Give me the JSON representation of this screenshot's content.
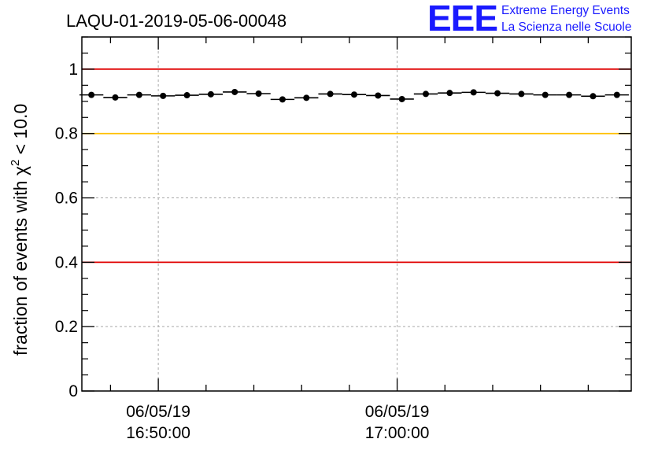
{
  "chart_data": {
    "type": "scatter",
    "title": "LAQU-01-2019-05-06-00048",
    "ylabel": {
      "prefix": "fraction of events with ",
      "chi": "χ",
      "exponent": "2",
      "suffix": " < 10.0"
    },
    "xlabel": "",
    "ylim": [
      0,
      1.1
    ],
    "yticks": [
      0,
      0.2,
      0.4,
      0.6,
      0.8,
      1
    ],
    "ytick_labels": [
      "0",
      "0.2",
      "0.4",
      "0.6",
      "0.8",
      "1"
    ],
    "xlim_minutes": [
      -3.2,
      19.8
    ],
    "xticks": [
      {
        "minute": 0,
        "date": "06/05/19",
        "time": "16:50:00"
      },
      {
        "minute": 10,
        "date": "06/05/19",
        "time": "17:00:00"
      }
    ],
    "x_minor_step_minutes": 2,
    "grid": true,
    "reference_lines": [
      {
        "y": 1.0,
        "color": "#e00000"
      },
      {
        "y": 0.8,
        "color": "#ffc000"
      },
      {
        "y": 0.4,
        "color": "#e00000"
      }
    ],
    "series": [
      {
        "name": "fraction",
        "bin_width_minutes": 1,
        "x_minutes": [
          -2.8,
          -1.8,
          -0.8,
          0.2,
          1.2,
          2.2,
          3.2,
          4.2,
          5.2,
          6.2,
          7.2,
          8.2,
          9.2,
          10.2,
          11.2,
          12.2,
          13.2,
          14.2,
          15.2,
          16.2,
          17.2,
          18.2,
          19.2
        ],
        "y": [
          0.92,
          0.912,
          0.92,
          0.917,
          0.919,
          0.922,
          0.929,
          0.924,
          0.906,
          0.911,
          0.923,
          0.921,
          0.918,
          0.907,
          0.923,
          0.926,
          0.928,
          0.925,
          0.923,
          0.92,
          0.92,
          0.916,
          0.92
        ]
      }
    ]
  },
  "logo": {
    "mark": "EEE",
    "line1": "Extreme Energy Events",
    "line2": "La Scienza nelle Scuole"
  }
}
